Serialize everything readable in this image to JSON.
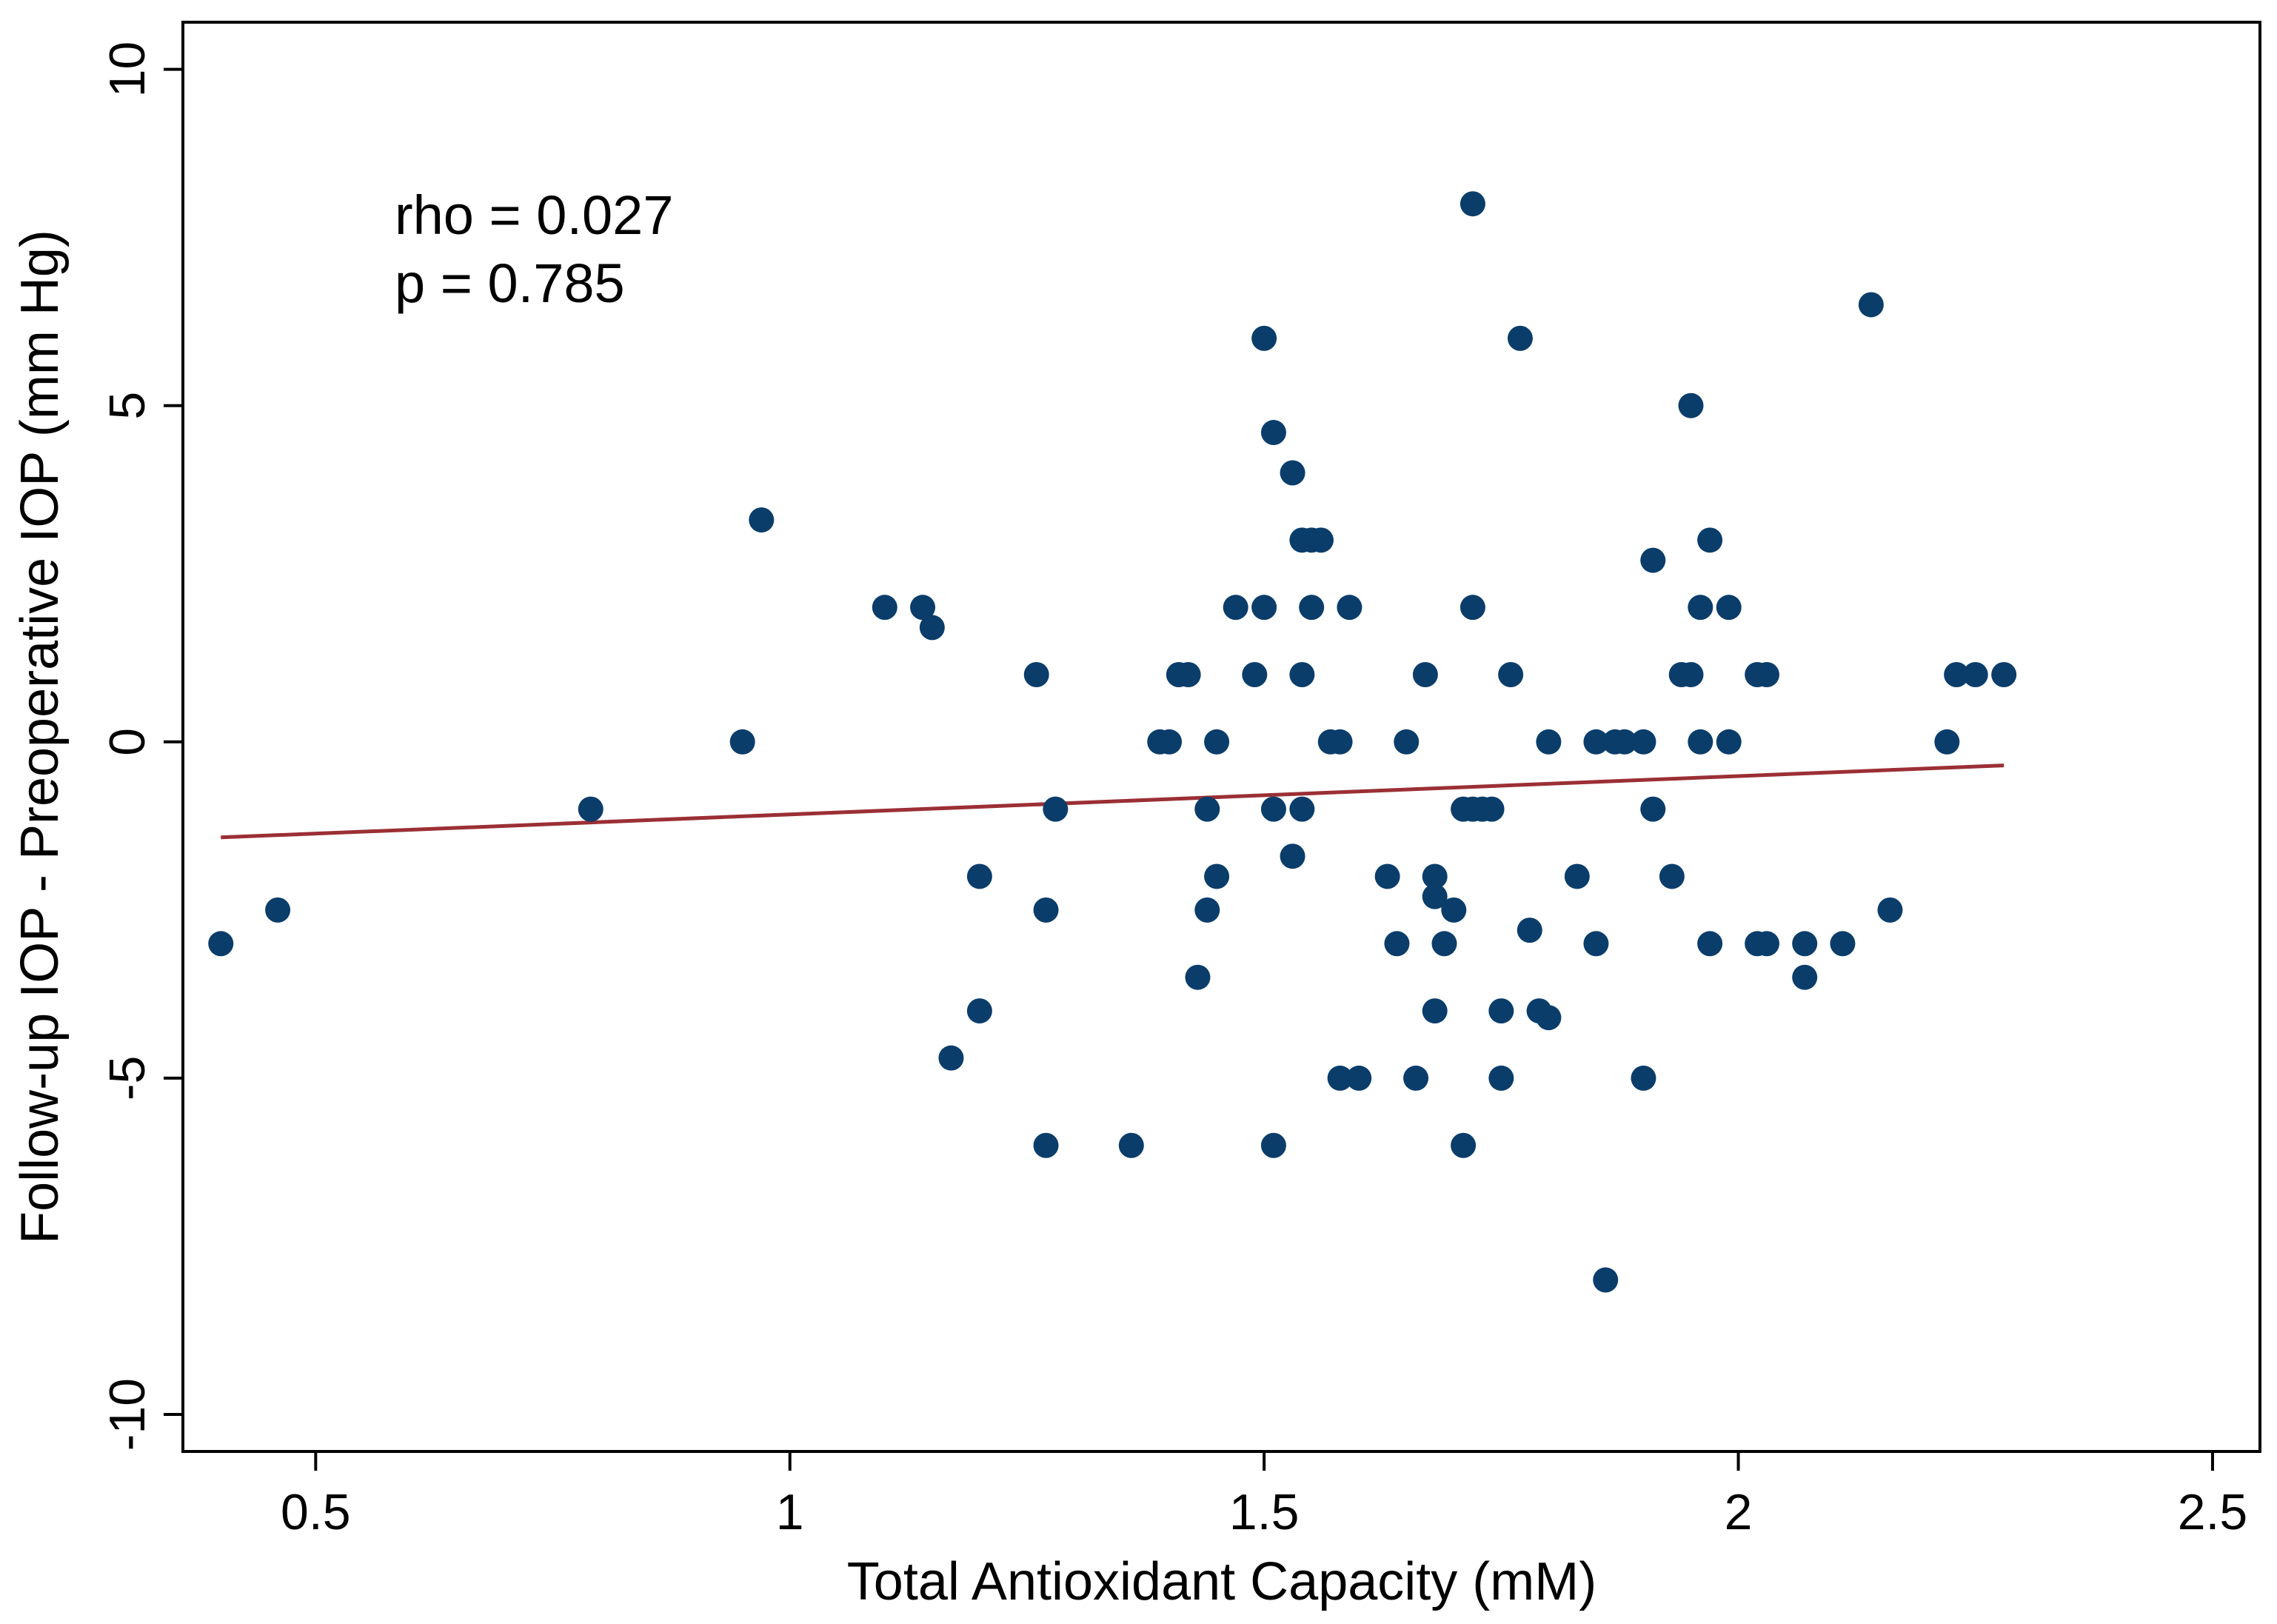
{
  "chart_data": {
    "type": "scatter",
    "title": "",
    "xlabel": "Total Antioxidant Capacity (mM)",
    "ylabel": "Follow-up IOP - Preoperative IOP (mm Hg)",
    "xlim": [
      0.36,
      2.55
    ],
    "ylim": [
      -10.55,
      10.7
    ],
    "x_ticks": [
      0.5,
      1,
      1.5,
      2,
      2.5
    ],
    "x_tick_labels": [
      "0.5",
      "1",
      "1.5",
      "2",
      "2.5"
    ],
    "y_ticks": [
      -10,
      -5,
      0,
      5,
      10
    ],
    "y_tick_labels": [
      "-10",
      "-5",
      "0",
      "5",
      "10"
    ],
    "grid": false,
    "annotations": [
      "rho = 0.027",
      "p = 0.785"
    ],
    "colors": {
      "points": "#0b3d6b",
      "fit_line": "#9b2f35",
      "axes": "#000000"
    },
    "fit_line": {
      "x": [
        0.4,
        2.28
      ],
      "y": [
        -1.42,
        -0.35
      ]
    },
    "points": [
      [
        0.4,
        -3
      ],
      [
        0.46,
        -2.5
      ],
      [
        0.79,
        -1
      ],
      [
        0.95,
        0
      ],
      [
        0.97,
        3.3
      ],
      [
        1.1,
        2
      ],
      [
        1.14,
        2
      ],
      [
        1.15,
        1.7
      ],
      [
        1.17,
        -4.7
      ],
      [
        1.2,
        -2
      ],
      [
        1.2,
        -4
      ],
      [
        1.26,
        1
      ],
      [
        1.27,
        -2.5
      ],
      [
        1.27,
        -6
      ],
      [
        1.28,
        -1
      ],
      [
        1.36,
        -6
      ],
      [
        1.39,
        0
      ],
      [
        1.4,
        0
      ],
      [
        1.41,
        1
      ],
      [
        1.42,
        1
      ],
      [
        1.43,
        -3.5
      ],
      [
        1.44,
        -2.5
      ],
      [
        1.44,
        -1
      ],
      [
        1.45,
        0
      ],
      [
        1.45,
        -2
      ],
      [
        1.47,
        2
      ],
      [
        1.49,
        1
      ],
      [
        1.5,
        2
      ],
      [
        1.5,
        6
      ],
      [
        1.51,
        4.6
      ],
      [
        1.51,
        -1
      ],
      [
        1.51,
        -6
      ],
      [
        1.53,
        4
      ],
      [
        1.53,
        -1.7
      ],
      [
        1.54,
        3
      ],
      [
        1.54,
        1
      ],
      [
        1.54,
        -1
      ],
      [
        1.55,
        3
      ],
      [
        1.55,
        2
      ],
      [
        1.56,
        3
      ],
      [
        1.57,
        0
      ],
      [
        1.58,
        0
      ],
      [
        1.58,
        -5
      ],
      [
        1.59,
        2
      ],
      [
        1.6,
        -5
      ],
      [
        1.63,
        -2
      ],
      [
        1.64,
        -3
      ],
      [
        1.65,
        0
      ],
      [
        1.66,
        -5
      ],
      [
        1.67,
        1
      ],
      [
        1.68,
        -2.3
      ],
      [
        1.68,
        -2
      ],
      [
        1.68,
        -4
      ],
      [
        1.69,
        -3
      ],
      [
        1.7,
        -2.5
      ],
      [
        1.71,
        -1
      ],
      [
        1.71,
        -6
      ],
      [
        1.72,
        8
      ],
      [
        1.72,
        2
      ],
      [
        1.72,
        -1
      ],
      [
        1.73,
        -1
      ],
      [
        1.74,
        -1
      ],
      [
        1.75,
        -4
      ],
      [
        1.75,
        -5
      ],
      [
        1.76,
        1
      ],
      [
        1.77,
        6
      ],
      [
        1.78,
        -2.8
      ],
      [
        1.79,
        -4
      ],
      [
        1.8,
        0
      ],
      [
        1.8,
        -4.1
      ],
      [
        1.83,
        -2
      ],
      [
        1.85,
        0
      ],
      [
        1.85,
        -3
      ],
      [
        1.86,
        -8
      ],
      [
        1.87,
        0
      ],
      [
        1.88,
        0
      ],
      [
        1.9,
        0
      ],
      [
        1.9,
        -5
      ],
      [
        1.91,
        -1
      ],
      [
        1.91,
        2.7
      ],
      [
        1.93,
        -2
      ],
      [
        1.94,
        1
      ],
      [
        1.95,
        1
      ],
      [
        1.95,
        5
      ],
      [
        1.96,
        2
      ],
      [
        1.96,
        0
      ],
      [
        1.97,
        3
      ],
      [
        1.97,
        -3
      ],
      [
        1.99,
        2
      ],
      [
        1.99,
        0
      ],
      [
        2.02,
        -3
      ],
      [
        2.02,
        1
      ],
      [
        2.03,
        1
      ],
      [
        2.03,
        -3
      ],
      [
        2.07,
        -3
      ],
      [
        2.07,
        -3.5
      ],
      [
        2.11,
        -3
      ],
      [
        2.14,
        6.5
      ],
      [
        2.16,
        -2.5
      ],
      [
        2.22,
        0
      ],
      [
        2.23,
        1
      ],
      [
        2.25,
        1
      ],
      [
        2.28,
        1
      ]
    ]
  }
}
